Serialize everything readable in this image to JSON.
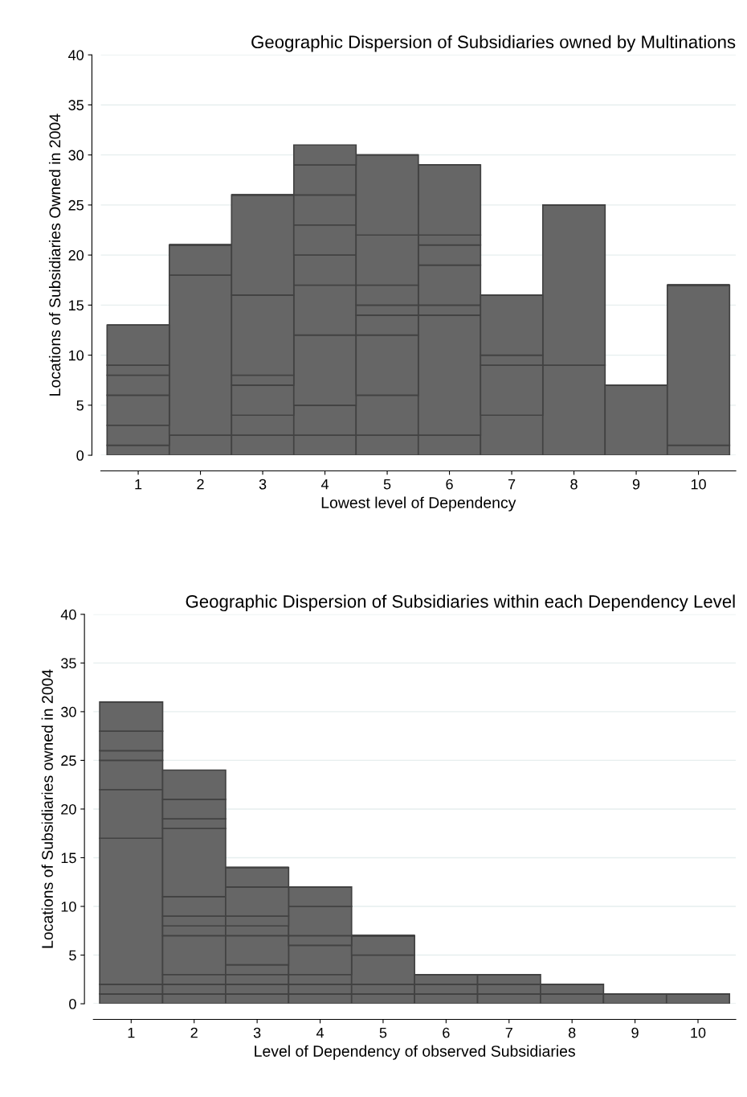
{
  "chart_data": [
    {
      "type": "bar",
      "title": "Geographic Dispersion of Subsidiaries owned by Multinations",
      "xlabel": "Lowest level of Dependency",
      "ylabel": "Locations of Subsidiaries Owned in 2004",
      "categories": [
        "1",
        "2",
        "3",
        "4",
        "5",
        "6",
        "7",
        "8",
        "9",
        "10"
      ],
      "stacked": true,
      "ylim": [
        0,
        40
      ],
      "yticks": [
        0,
        5,
        10,
        15,
        20,
        25,
        30,
        35,
        40
      ],
      "grid": "y",
      "series": [
        {
          "color": "#666666",
          "values": [
            1,
            2,
            2,
            2,
            2,
            2,
            4,
            9,
            7,
            1
          ]
        },
        {
          "color": "#666666",
          "values": [
            2,
            16,
            2,
            3,
            4,
            12,
            5,
            16,
            null,
            16
          ]
        },
        {
          "color": "#666666",
          "values": [
            3,
            3,
            3,
            7,
            6,
            1,
            1,
            null,
            null,
            null
          ]
        },
        {
          "color": "#666666",
          "values": [
            2,
            null,
            1,
            5,
            2,
            4,
            6,
            null,
            null,
            null
          ]
        },
        {
          "color": "#666666",
          "values": [
            1,
            null,
            8,
            3,
            1,
            2,
            null,
            null,
            null,
            null
          ]
        },
        {
          "color": "#666666",
          "values": [
            4,
            null,
            10,
            3,
            2,
            1,
            null,
            null,
            null,
            null
          ]
        },
        {
          "color": "#666666",
          "values": [
            null,
            null,
            null,
            3,
            5,
            7,
            null,
            null,
            null,
            null
          ]
        },
        {
          "color": "#666666",
          "values": [
            null,
            null,
            null,
            3,
            8,
            null,
            null,
            null,
            null,
            null
          ]
        },
        {
          "color": "#666666",
          "values": [
            null,
            null,
            null,
            2,
            null,
            null,
            null,
            null,
            null,
            null
          ]
        }
      ]
    },
    {
      "type": "bar",
      "title": "Geographic Dispersion of Subsidiaries within each Dependency Level",
      "xlabel": "Level of Dependency of observed Subsidiaries",
      "ylabel": "Locations of Subsidiaries owned in 2004",
      "categories": [
        "1",
        "2",
        "3",
        "4",
        "5",
        "6",
        "7",
        "8",
        "9",
        "10"
      ],
      "stacked": true,
      "ylim": [
        0,
        40
      ],
      "yticks": [
        0,
        5,
        10,
        15,
        20,
        25,
        30,
        35,
        40
      ],
      "grid": "y",
      "series": [
        {
          "color": "#666666",
          "values": [
            1,
            1,
            1,
            1,
            1,
            1,
            1,
            1,
            1,
            1
          ]
        },
        {
          "color": "#666666",
          "values": [
            1,
            1,
            1,
            1,
            1,
            1,
            1,
            1,
            null,
            null
          ]
        },
        {
          "color": "#666666",
          "values": [
            15,
            1,
            1,
            1,
            3,
            1,
            1,
            null,
            null,
            null
          ]
        },
        {
          "color": "#666666",
          "values": [
            5,
            4,
            1,
            3,
            2,
            null,
            null,
            null,
            null,
            null
          ]
        },
        {
          "color": "#666666",
          "values": [
            3,
            1,
            3,
            1,
            null,
            null,
            null,
            null,
            null,
            null
          ]
        },
        {
          "color": "#666666",
          "values": [
            1,
            1,
            1,
            3,
            null,
            null,
            null,
            null,
            null,
            null
          ]
        },
        {
          "color": "#666666",
          "values": [
            2,
            2,
            1,
            2,
            null,
            null,
            null,
            null,
            null,
            null
          ]
        },
        {
          "color": "#666666",
          "values": [
            3,
            7,
            3,
            null,
            null,
            null,
            null,
            null,
            null,
            null
          ]
        },
        {
          "color": "#666666",
          "values": [
            null,
            1,
            2,
            null,
            null,
            null,
            null,
            null,
            null,
            null
          ]
        },
        {
          "color": "#666666",
          "values": [
            null,
            2,
            null,
            null,
            null,
            null,
            null,
            null,
            null,
            null
          ]
        },
        {
          "color": "#666666",
          "values": [
            null,
            3,
            null,
            null,
            null,
            null,
            null,
            null,
            null,
            null
          ]
        }
      ]
    }
  ]
}
